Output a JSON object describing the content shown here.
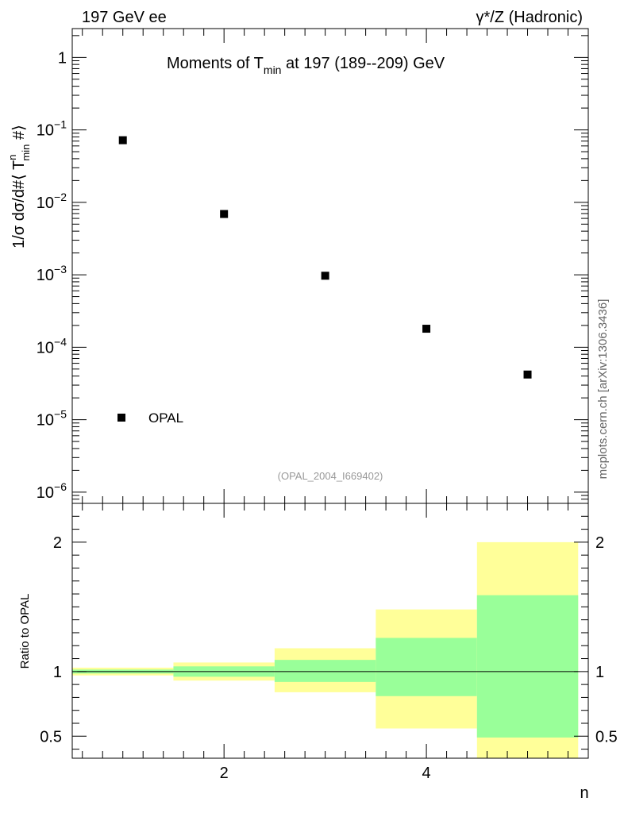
{
  "header": {
    "left": "197 GeV ee",
    "right": "γ*/Z (Hadronic)",
    "side": "mcplots.cern.ch [arXiv:1306.3436]"
  },
  "chart_data": [
    {
      "type": "scatter",
      "title_main": "Moments of T",
      "title_sub": "min",
      "title_rest": " at 197 (189--209) GeV",
      "yscale": "log",
      "ylim": [
        7e-07,
        2.5
      ],
      "xlim": [
        0.5,
        5.6
      ],
      "y_ticks": [
        {
          "value": 1,
          "mant": "1",
          "exp": ""
        },
        {
          "value": 0.1,
          "mant": "10",
          "exp": "−1"
        },
        {
          "value": 0.01,
          "mant": "10",
          "exp": "−2"
        },
        {
          "value": 0.001,
          "mant": "10",
          "exp": "−3"
        },
        {
          "value": 0.0001,
          "mant": "10",
          "exp": "−4"
        },
        {
          "value": 1e-05,
          "mant": "10",
          "exp": "−5"
        },
        {
          "value": 1e-06,
          "mant": "10",
          "exp": "−6"
        }
      ],
      "ylabel": {
        "p1": "1/σ  dσ/d#⟨ T",
        "sup": "n",
        "sub": "min",
        "p2": " #⟩"
      },
      "series": [
        {
          "name": "OPAL",
          "x": [
            1,
            2,
            3,
            4,
            5
          ],
          "y": [
            0.072,
            0.0069,
            0.00097,
            0.00018,
            4.2e-05
          ]
        }
      ],
      "legend": {
        "label": "OPAL",
        "placement": "bottom-left"
      },
      "watermark": "(OPAL_2004_I669402)"
    },
    {
      "type": "ratio",
      "ylabel": "Ratio to OPAL",
      "xlabel": "n",
      "ylim": [
        0.33,
        2.3
      ],
      "y_ticks": [
        {
          "value": 2,
          "label": "2"
        },
        {
          "value": 1,
          "label": "1"
        },
        {
          "value": 0.5,
          "label": "0.5"
        }
      ],
      "x_ticks": [
        {
          "value": 2,
          "label": "2"
        },
        {
          "value": 4,
          "label": "4"
        }
      ],
      "bins": [
        {
          "lo": 0.5,
          "hi": 1.5,
          "inner": [
            0.985,
            1.015
          ],
          "outer": [
            0.97,
            1.03
          ]
        },
        {
          "lo": 1.5,
          "hi": 2.5,
          "inner": [
            0.96,
            1.04
          ],
          "outer": [
            0.93,
            1.07
          ]
        },
        {
          "lo": 2.5,
          "hi": 3.5,
          "inner": [
            0.92,
            1.09
          ],
          "outer": [
            0.84,
            1.18
          ]
        },
        {
          "lo": 3.5,
          "hi": 4.5,
          "inner": [
            0.81,
            1.26
          ],
          "outer": [
            0.56,
            1.48
          ]
        },
        {
          "lo": 4.5,
          "hi": 5.5,
          "inner": [
            0.49,
            1.59
          ],
          "outer": [
            0.33,
            2.0
          ]
        }
      ],
      "colors": {
        "inner": "#99ff99",
        "outer": "#ffff99"
      }
    }
  ]
}
